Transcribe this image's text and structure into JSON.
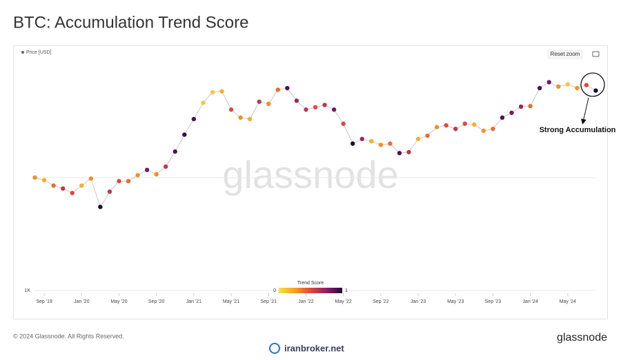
{
  "chart_data": {
    "type": "scatter",
    "title": "BTC: Accumulation Trend Score",
    "legend_label": "Price [USD]",
    "reset_button": "Reset zoom",
    "annotation": "Strong Accumulation",
    "watermark": "glassnode",
    "colorbar_title": "Trend Score",
    "colorbar_ticks": [
      0,
      1
    ],
    "colorscale": [
      "#f9e04b",
      "#f7a21b",
      "#e2483a",
      "#8e1d6b",
      "#220a3f"
    ],
    "log_scale": true,
    "grid": true,
    "xlim": [
      "2019-07",
      "2024-09"
    ],
    "xticks": [
      {
        "value": "2019-09",
        "label": "Sep '19"
      },
      {
        "value": "2020-01",
        "label": "Jan '20"
      },
      {
        "value": "2020-05",
        "label": "May '20"
      },
      {
        "value": "2020-09",
        "label": "Sep '20"
      },
      {
        "value": "2021-01",
        "label": "Jan '21"
      },
      {
        "value": "2021-05",
        "label": "May '21"
      },
      {
        "value": "2021-09",
        "label": "Sep '21"
      },
      {
        "value": "2022-01",
        "label": "Jan '22"
      },
      {
        "value": "2022-05",
        "label": "May '22"
      },
      {
        "value": "2022-09",
        "label": "Sep '22"
      },
      {
        "value": "2023-01",
        "label": "Jan '23"
      },
      {
        "value": "2023-05",
        "label": "May '23"
      },
      {
        "value": "2023-09",
        "label": "Sep '23"
      },
      {
        "value": "2024-01",
        "label": "Jan '24"
      },
      {
        "value": "2024-05",
        "label": "May '24"
      }
    ],
    "ylim": [
      1000,
      100000
    ],
    "yticks": [
      {
        "value": 1000,
        "label": "1K"
      },
      {
        "value": 10000,
        "label": null
      }
    ],
    "x": [
      "2019-08",
      "2019-09",
      "2019-10",
      "2019-11",
      "2019-12",
      "2020-01",
      "2020-02",
      "2020-03",
      "2020-04",
      "2020-05",
      "2020-06",
      "2020-07",
      "2020-08",
      "2020-09",
      "2020-10",
      "2020-11",
      "2020-12",
      "2021-01",
      "2021-02",
      "2021-03",
      "2021-04",
      "2021-05",
      "2021-06",
      "2021-07",
      "2021-08",
      "2021-09",
      "2021-10",
      "2021-11",
      "2021-12",
      "2022-01",
      "2022-02",
      "2022-03",
      "2022-04",
      "2022-05",
      "2022-06",
      "2022-07",
      "2022-08",
      "2022-09",
      "2022-10",
      "2022-11",
      "2022-12",
      "2023-01",
      "2023-02",
      "2023-03",
      "2023-04",
      "2023-05",
      "2023-06",
      "2023-07",
      "2023-08",
      "2023-09",
      "2023-10",
      "2023-11",
      "2023-12",
      "2024-01",
      "2024-02",
      "2024-03",
      "2024-04",
      "2024-05",
      "2024-06",
      "2024-07",
      "2024-08"
    ],
    "values": [
      10000,
      9500,
      8500,
      8000,
      7300,
      8500,
      9800,
      5500,
      7500,
      9300,
      9300,
      10500,
      11700,
      10700,
      12500,
      17000,
      24000,
      33000,
      46000,
      57000,
      58000,
      40000,
      34000,
      33000,
      47000,
      45000,
      60000,
      62000,
      48000,
      40000,
      42000,
      44000,
      40000,
      30000,
      20000,
      22000,
      21000,
      19500,
      20000,
      16500,
      16800,
      22000,
      23500,
      28000,
      29000,
      27000,
      30000,
      29500,
      26000,
      27000,
      34000,
      37500,
      42500,
      43000,
      62000,
      70000,
      64000,
      67000,
      62000,
      66000,
      59000
    ],
    "scores": [
      0.3,
      0.2,
      0.4,
      0.6,
      0.5,
      0.2,
      0.3,
      1.0,
      0.6,
      0.5,
      0.4,
      0.3,
      0.8,
      0.3,
      0.6,
      0.9,
      0.95,
      0.9,
      0.1,
      0.1,
      0.2,
      0.5,
      0.3,
      0.2,
      0.6,
      0.3,
      0.4,
      0.9,
      0.7,
      0.6,
      0.5,
      0.6,
      0.8,
      0.5,
      1.0,
      0.7,
      0.2,
      0.3,
      0.4,
      0.9,
      0.6,
      0.2,
      0.4,
      0.3,
      0.5,
      0.6,
      0.5,
      0.2,
      0.3,
      0.4,
      0.9,
      0.8,
      0.7,
      0.4,
      0.9,
      0.8,
      0.3,
      0.1,
      0.3,
      0.5,
      1.0
    ]
  },
  "footer": {
    "copyright": "© 2024 Glassnode. All Rights Reserved.",
    "brand": "glassnode",
    "source": "iranbroker.net"
  }
}
